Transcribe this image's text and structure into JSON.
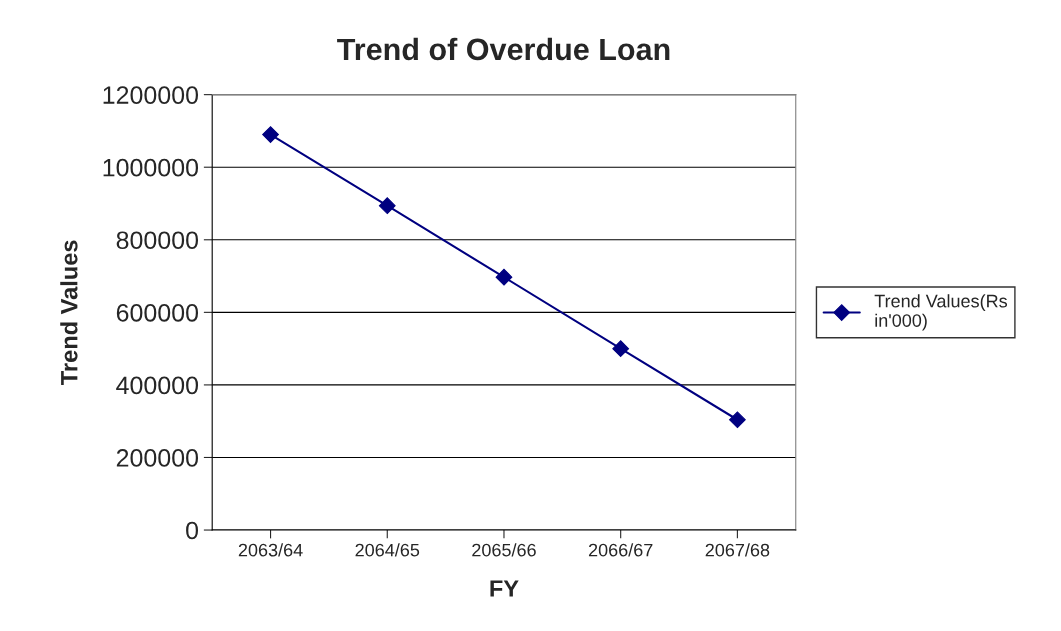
{
  "chart_data": {
    "type": "line",
    "title": "Trend of Overdue Loan",
    "xlabel": "FY",
    "ylabel": "Trend Values",
    "categories": [
      "2063/64",
      "2064/65",
      "2065/66",
      "2066/67",
      "2067/68"
    ],
    "series": [
      {
        "name": "Trend Values(Rs in'000)",
        "color": "#000080",
        "values": [
          1090000,
          894000,
          697000,
          500000,
          304000
        ]
      }
    ],
    "ylim": [
      0,
      1200000
    ],
    "yticks": [
      0,
      200000,
      400000,
      600000,
      800000,
      1000000,
      1200000
    ],
    "grid": "y",
    "legend": "right",
    "marker": "diamond",
    "line_style": "solid"
  }
}
